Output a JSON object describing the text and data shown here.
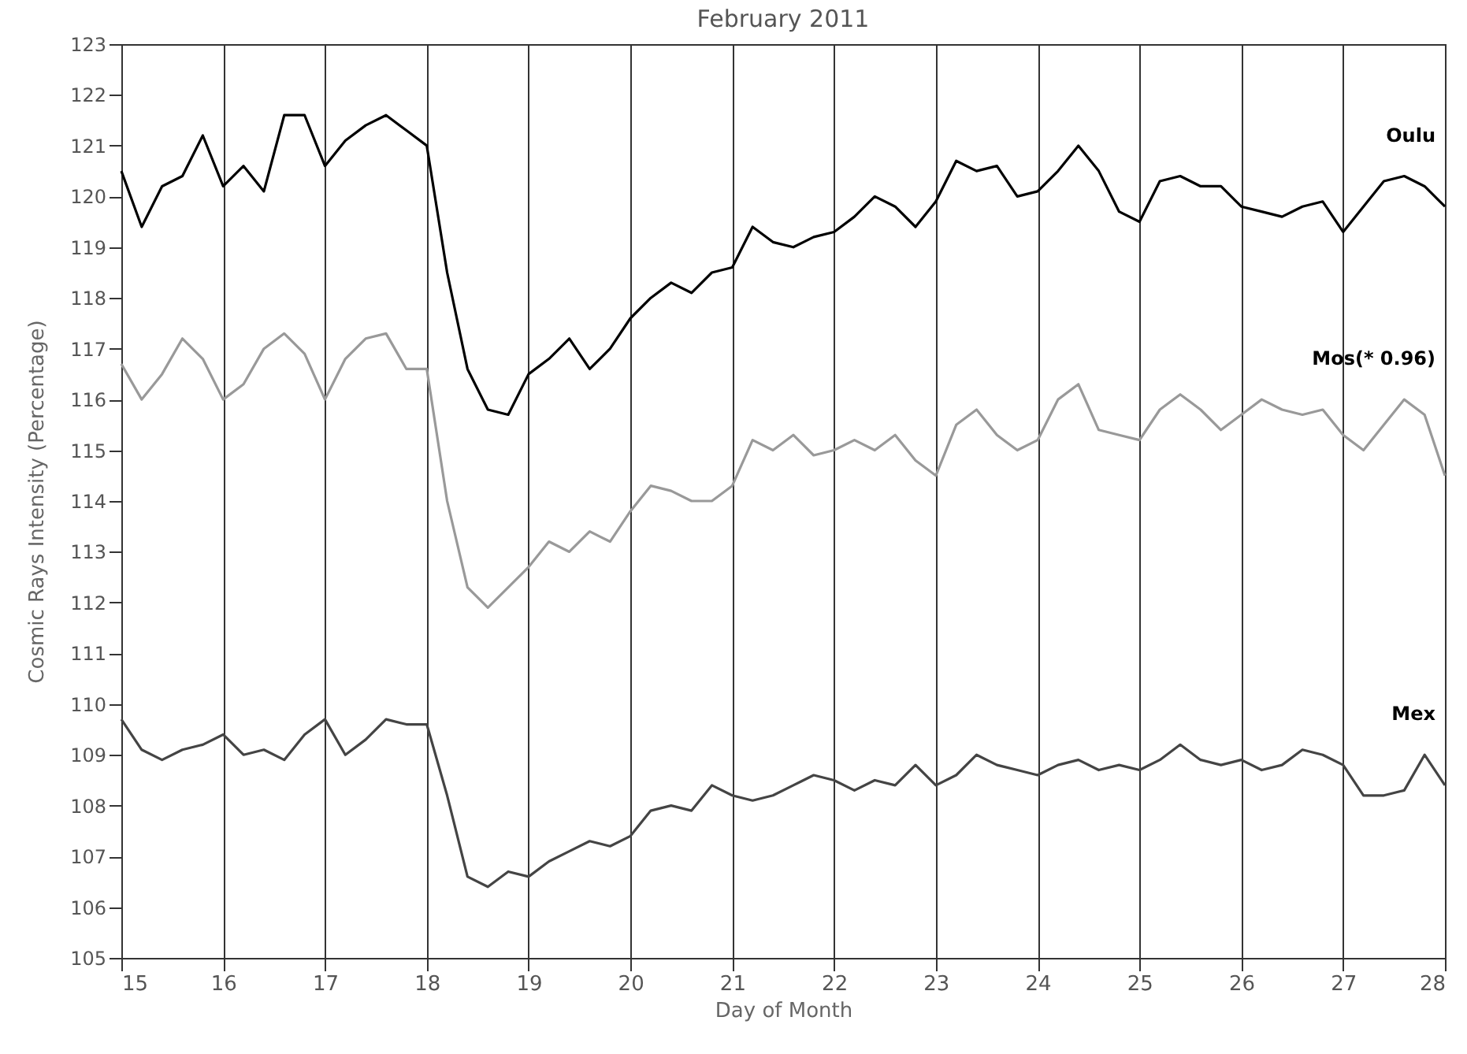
{
  "chart_data": {
    "type": "line",
    "title": "February 2011",
    "xlabel": "Day of Month",
    "ylabel": "Cosmic Rays Intensity (Percentage)",
    "x": [
      15.0,
      15.2,
      15.4,
      15.6,
      15.8,
      16.0,
      16.2,
      16.4,
      16.6,
      16.8,
      17.0,
      17.2,
      17.4,
      17.6,
      17.8,
      18.0,
      18.2,
      18.4,
      18.6,
      18.8,
      19.0,
      19.2,
      19.4,
      19.6,
      19.8,
      20.0,
      20.2,
      20.4,
      20.6,
      20.8,
      21.0,
      21.2,
      21.4,
      21.6,
      21.8,
      22.0,
      22.2,
      22.4,
      22.6,
      22.8,
      23.0,
      23.2,
      23.4,
      23.6,
      23.8,
      24.0,
      24.2,
      24.4,
      24.6,
      24.8,
      25.0,
      25.2,
      25.4,
      25.6,
      25.8,
      26.0,
      26.2,
      26.4,
      26.6,
      26.8,
      27.0,
      27.2,
      27.4,
      27.6,
      27.8,
      28.0
    ],
    "series": [
      {
        "name": "Oulu",
        "color": "#000000",
        "values": [
          120.5,
          119.4,
          120.2,
          120.4,
          121.2,
          120.2,
          120.6,
          120.1,
          121.6,
          121.6,
          120.6,
          121.1,
          121.4,
          121.6,
          121.3,
          121.0,
          118.5,
          116.6,
          115.8,
          115.7,
          116.5,
          116.8,
          117.2,
          116.6,
          117.0,
          117.6,
          118.0,
          118.3,
          118.1,
          118.5,
          118.6,
          119.4,
          119.1,
          119.0,
          119.2,
          119.3,
          119.6,
          120.0,
          119.8,
          119.4,
          119.9,
          120.7,
          120.5,
          120.6,
          120.0,
          120.1,
          120.5,
          121.0,
          120.5,
          119.7,
          119.5,
          120.3,
          120.4,
          120.2,
          120.2,
          119.8,
          119.7,
          119.6,
          119.8,
          119.9,
          119.3,
          119.8,
          120.3,
          120.4,
          120.2,
          119.8
        ]
      },
      {
        "name": "Mos(* 0.96)",
        "color": "#999999",
        "values": [
          116.7,
          116.0,
          116.5,
          117.2,
          116.8,
          116.0,
          116.3,
          117.0,
          117.3,
          116.9,
          116.0,
          116.8,
          117.2,
          117.3,
          116.6,
          116.6,
          114.0,
          112.3,
          111.9,
          112.3,
          112.7,
          113.2,
          113.0,
          113.4,
          113.2,
          113.8,
          114.3,
          114.2,
          114.0,
          114.0,
          114.3,
          115.2,
          115.0,
          115.3,
          114.9,
          115.0,
          115.2,
          115.0,
          115.3,
          114.8,
          114.5,
          115.5,
          115.8,
          115.3,
          115.0,
          115.2,
          116.0,
          116.3,
          115.4,
          115.3,
          115.2,
          115.8,
          116.1,
          115.8,
          115.4,
          115.7,
          116.0,
          115.8,
          115.7,
          115.8,
          115.3,
          115.0,
          115.5,
          116.0,
          115.7,
          114.5
        ]
      },
      {
        "name": "Mex",
        "color": "#444444",
        "values": [
          109.7,
          109.1,
          108.9,
          109.1,
          109.2,
          109.4,
          109.0,
          109.1,
          108.9,
          109.4,
          109.7,
          109.0,
          109.3,
          109.7,
          109.6,
          109.6,
          108.2,
          106.6,
          106.4,
          106.7,
          106.6,
          106.9,
          107.1,
          107.3,
          107.2,
          107.4,
          107.9,
          108.0,
          107.9,
          108.4,
          108.2,
          108.1,
          108.2,
          108.4,
          108.6,
          108.5,
          108.3,
          108.5,
          108.4,
          108.8,
          108.4,
          108.6,
          109.0,
          108.8,
          108.7,
          108.6,
          108.8,
          108.9,
          108.7,
          108.8,
          108.7,
          108.9,
          109.2,
          108.9,
          108.8,
          108.9,
          108.7,
          108.8,
          109.1,
          109.0,
          108.8,
          108.2,
          108.2,
          108.3,
          109.0,
          108.4
        ]
      }
    ],
    "xlim": [
      15,
      28
    ],
    "xticks": [
      15,
      16,
      17,
      18,
      19,
      20,
      21,
      22,
      23,
      24,
      25,
      26,
      27,
      28
    ],
    "ylim": [
      105,
      123
    ],
    "yticks": [
      105,
      106,
      107,
      108,
      109,
      110,
      111,
      112,
      113,
      114,
      115,
      116,
      117,
      118,
      119,
      120,
      121,
      122,
      123
    ],
    "grid": "x",
    "legend": false
  }
}
